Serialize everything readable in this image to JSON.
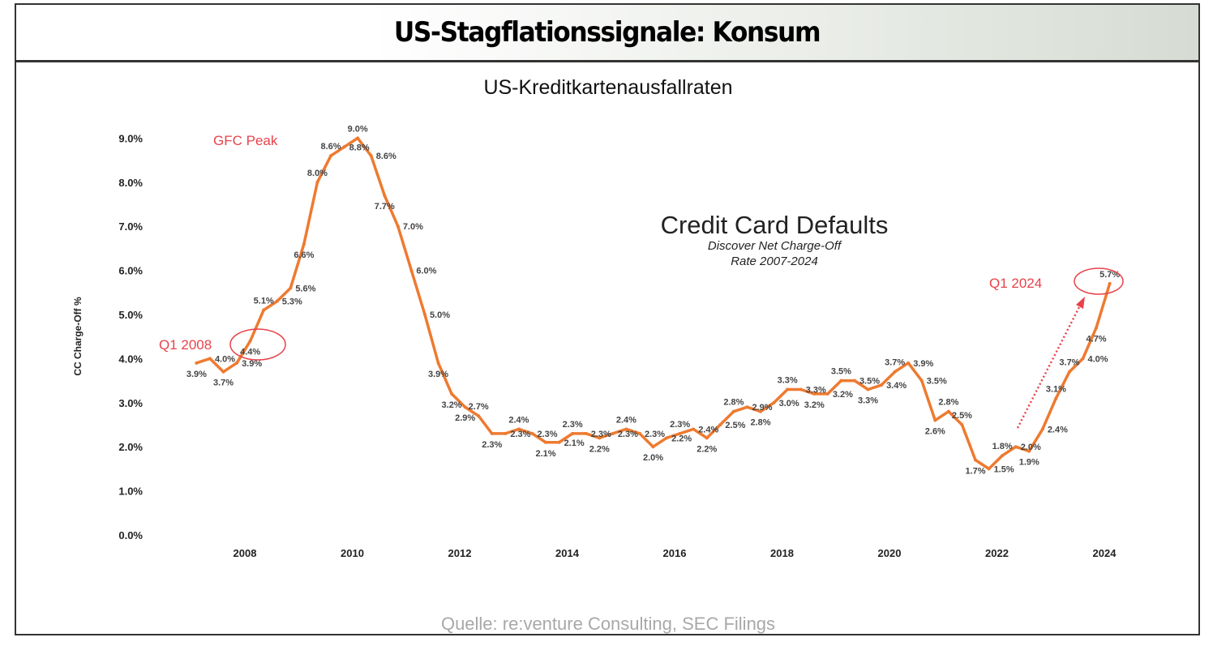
{
  "header": {
    "title": "US-Stagflationssignale: Konsum"
  },
  "subtitle": "US-Kreditkartenausfallraten",
  "source": "Quelle: re:venture Consulting, SEC Filings",
  "colors": {
    "line": "#ee7a30",
    "annotation": "#e8424a"
  },
  "chart_data": {
    "type": "line",
    "title": "Credit Card Defaults",
    "subtitle_lines": [
      "Discover Net Charge-Off",
      "Rate 2007-2024"
    ],
    "ylabel": "CC Charge-Off %",
    "xlabel": "",
    "ylim": [
      0,
      9
    ],
    "xlim": [
      2006.5,
      2024.75
    ],
    "y_ticks": [
      "0.0%",
      "1.0%",
      "2.0%",
      "3.0%",
      "4.0%",
      "5.0%",
      "6.0%",
      "7.0%",
      "8.0%",
      "9.0%"
    ],
    "x_ticks": [
      "2008",
      "2010",
      "2012",
      "2014",
      "2016",
      "2018",
      "2020",
      "2022",
      "2024"
    ],
    "grid": false,
    "x_start": 2007.1,
    "x_step": 0.25,
    "series": [
      {
        "name": "Discover Net Charge-Off Rate",
        "values": [
          3.9,
          4.0,
          3.7,
          3.9,
          4.4,
          5.1,
          5.3,
          5.6,
          6.6,
          8.0,
          8.6,
          8.8,
          9.0,
          8.6,
          7.7,
          7.0,
          6.0,
          5.0,
          3.9,
          3.2,
          2.9,
          2.7,
          2.3,
          2.3,
          2.4,
          2.3,
          2.1,
          2.1,
          2.3,
          2.3,
          2.2,
          2.3,
          2.4,
          2.3,
          2.0,
          2.2,
          2.3,
          2.4,
          2.2,
          2.5,
          2.8,
          2.9,
          2.8,
          3.0,
          3.3,
          3.3,
          3.2,
          3.2,
          3.5,
          3.5,
          3.3,
          3.4,
          3.7,
          3.9,
          3.5,
          2.6,
          2.8,
          2.5,
          1.7,
          1.5,
          1.8,
          2.0,
          1.9,
          2.4,
          3.1,
          3.7,
          4.0,
          4.7,
          5.7
        ]
      }
    ],
    "annotations": [
      {
        "text": "GFC Peak"
      },
      {
        "text": "Q1 2008"
      },
      {
        "text": "Q1 2024"
      }
    ]
  }
}
